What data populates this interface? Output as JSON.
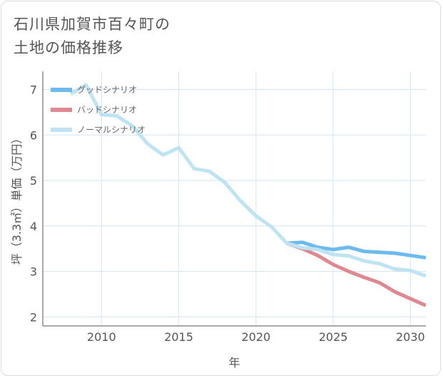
{
  "title_lines": [
    "石川県加賀市百々町の",
    "土地の価格推移"
  ],
  "colors": {
    "good": "#6cbbef",
    "bad": "#e08891",
    "normal": "#bee3f3",
    "grid": "#d2e6f3",
    "axis": "#555555"
  },
  "chart_data": {
    "type": "line",
    "title": "石川県加賀市百々町の土地の価格推移",
    "xlabel": "年",
    "ylabel": "坪（3.3㎡）単価（万円）",
    "xlim": [
      2006.2,
      2031.0
    ],
    "ylim": [
      1.8,
      7.4
    ],
    "xticks": [
      2010,
      2015,
      2020,
      2025,
      2030
    ],
    "yticks": [
      2,
      3,
      4,
      5,
      6,
      7
    ],
    "grid": true,
    "legend_position": "top-left",
    "series": [
      {
        "name": "グッドシナリオ",
        "key": "good",
        "x": [
          2022,
          2023,
          2024,
          2025,
          2026,
          2027,
          2028,
          2029,
          2030,
          2031
        ],
        "values": [
          3.62,
          3.64,
          3.53,
          3.48,
          3.53,
          3.44,
          3.42,
          3.4,
          3.35,
          3.3
        ]
      },
      {
        "name": "バッドシナリオ",
        "key": "bad",
        "x": [
          2022,
          2023,
          2024,
          2025,
          2026,
          2027,
          2028,
          2029,
          2030,
          2031
        ],
        "values": [
          3.62,
          3.5,
          3.35,
          3.15,
          3.0,
          2.87,
          2.75,
          2.55,
          2.4,
          2.25
        ]
      },
      {
        "name": "ノーマルシナリオ",
        "key": "normal",
        "x": [
          2008,
          2009,
          2010,
          2011,
          2012,
          2013,
          2014,
          2015,
          2016,
          2017,
          2018,
          2019,
          2020,
          2021,
          2022,
          2023,
          2024,
          2025,
          2026,
          2027,
          2028,
          2029,
          2030,
          2031
        ],
        "values": [
          6.9,
          7.1,
          6.45,
          6.42,
          6.2,
          5.8,
          5.56,
          5.72,
          5.26,
          5.2,
          4.95,
          4.55,
          4.22,
          3.98,
          3.62,
          3.52,
          3.48,
          3.37,
          3.34,
          3.23,
          3.17,
          3.05,
          3.02,
          2.9
        ]
      }
    ]
  }
}
